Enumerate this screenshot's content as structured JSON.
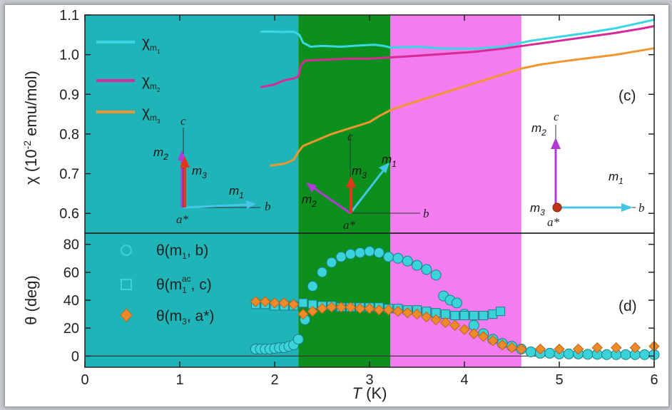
{
  "chart_data": [
    {
      "panel": "c",
      "type": "line",
      "ylabel_parts": [
        "χ (10",
        "-2",
        " emu/mol)"
      ],
      "ylim": [
        0.55,
        1.1
      ],
      "yticks": [
        "0.6",
        "0.7",
        "0.8",
        "0.9",
        "1.0",
        "1.1"
      ],
      "regions": [
        {
          "from": 0,
          "to": 2.25,
          "color": "#1fb5b8"
        },
        {
          "from": 2.25,
          "to": 3.22,
          "color": "#0c8f1c"
        },
        {
          "from": 3.22,
          "to": 4.6,
          "color": "#f27cf0"
        }
      ],
      "series": [
        {
          "name": "χm1",
          "color": "#39d6e6",
          "x": [
            1.85,
            2.0,
            2.1,
            2.2,
            2.26,
            2.3,
            2.38,
            2.5,
            2.7,
            2.9,
            3.05,
            3.15,
            3.22,
            3.5,
            3.8,
            4.1,
            4.4,
            4.7,
            5.0,
            5.3,
            5.6,
            5.85,
            6.0
          ],
          "y": [
            1.058,
            1.058,
            1.057,
            1.058,
            1.05,
            1.03,
            1.02,
            1.022,
            1.02,
            1.023,
            1.025,
            1.022,
            1.018,
            1.02,
            1.015,
            1.015,
            1.02,
            1.035,
            1.045,
            1.055,
            1.067,
            1.08,
            1.088
          ]
        },
        {
          "name": "χm2",
          "color": "#d82a96",
          "x": [
            1.85,
            2.0,
            2.1,
            2.2,
            2.25,
            2.28,
            2.32,
            2.5,
            2.8,
            3.0,
            3.22,
            3.5,
            3.8,
            4.1,
            4.4,
            4.7,
            5.0,
            5.3,
            5.6,
            5.85,
            6.0
          ],
          "y": [
            0.918,
            0.925,
            0.935,
            0.94,
            0.945,
            0.975,
            0.985,
            0.987,
            0.99,
            0.99,
            0.993,
            0.997,
            1.002,
            1.007,
            1.015,
            1.025,
            1.035,
            1.045,
            1.055,
            1.065,
            1.072
          ]
        },
        {
          "name": "χm3",
          "color": "#f0962c",
          "x": [
            1.95,
            2.1,
            2.2,
            2.25,
            2.3,
            2.45,
            2.6,
            2.8,
            3.0,
            3.1,
            3.22,
            3.4,
            3.6,
            3.8,
            4.0,
            4.2,
            4.4,
            4.6,
            4.8,
            5.0,
            5.2,
            5.4,
            5.6,
            5.8,
            6.0
          ],
          "y": [
            0.72,
            0.725,
            0.735,
            0.755,
            0.77,
            0.785,
            0.8,
            0.815,
            0.83,
            0.845,
            0.86,
            0.875,
            0.89,
            0.905,
            0.92,
            0.935,
            0.95,
            0.965,
            0.975,
            0.982,
            0.988,
            0.994,
            1.0,
            1.008,
            1.016
          ]
        }
      ],
      "annotations": {
        "panel_label": "(c)",
        "region1": {
          "c": "c",
          "m2": "m",
          "m2_sub": "2",
          "m3": "m",
          "m3_sub": "3",
          "m1": "m",
          "m1_sub": "1",
          "b": "b",
          "a": "a*"
        },
        "region2": {
          "c": "c",
          "m3": "m",
          "m3_sub": "3",
          "m1": "m",
          "m1_sub": "1",
          "m2": "m",
          "m2_sub": "2",
          "b": "b",
          "a": "a*"
        },
        "region4": {
          "m2": "m",
          "m2_sub": "2",
          "c": "c",
          "m1": "m",
          "m1_sub": "1",
          "m3": "m",
          "m3_sub": "3",
          "b": "b",
          "a": "a*"
        }
      }
    },
    {
      "panel": "d",
      "type": "scatter",
      "ylabel": "θ (deg)",
      "ylim": [
        -8,
        88
      ],
      "yticks": [
        "0",
        "20",
        "40",
        "60",
        "80"
      ],
      "series": [
        {
          "name": "θ(m1, b)",
          "marker": "circle",
          "color": "#3ad3da",
          "x": [
            1.8,
            1.85,
            1.9,
            1.95,
            2.0,
            2.05,
            2.1,
            2.15,
            2.2,
            2.25,
            2.32,
            2.4,
            2.5,
            2.6,
            2.7,
            2.8,
            2.9,
            3.0,
            3.1,
            3.2,
            3.3,
            3.4,
            3.5,
            3.6,
            3.7,
            3.78,
            3.85,
            3.92,
            4.0,
            4.1,
            4.2,
            4.3,
            4.4,
            4.5,
            4.6,
            4.7,
            4.8,
            4.9,
            5.0,
            5.1,
            5.2,
            5.3,
            5.4,
            5.5,
            5.6,
            5.7,
            5.8,
            5.9,
            6.0
          ],
          "y": [
            5,
            5,
            5,
            5,
            5.5,
            6,
            6,
            7,
            8,
            12,
            26,
            50,
            60,
            67,
            71,
            73,
            74,
            75,
            74,
            71,
            70,
            68,
            65,
            62,
            58,
            43,
            40,
            38,
            30,
            22,
            16,
            12,
            9,
            7,
            5,
            3,
            2,
            2,
            1.5,
            1.5,
            1.5,
            1.2,
            1.2,
            1,
            1,
            1,
            1,
            1,
            1
          ]
        },
        {
          "name": "θ(m1ac, c)",
          "marker": "square",
          "color": "#3ad3da",
          "x": [
            1.8,
            1.9,
            2.0,
            2.1,
            2.2,
            2.3,
            2.4,
            2.5,
            2.6,
            2.7,
            2.8,
            2.9,
            3.0,
            3.1,
            3.2,
            3.3,
            3.4,
            3.5,
            3.6,
            3.7,
            3.8,
            3.9,
            4.0,
            4.1,
            4.2,
            4.3,
            4.38
          ],
          "y": [
            37,
            37,
            36,
            36,
            36,
            38,
            37,
            36,
            36,
            35,
            35,
            35,
            35,
            35,
            34,
            34,
            33,
            33,
            32,
            31,
            30,
            29,
            29,
            29,
            29,
            30,
            32
          ]
        },
        {
          "name": "θ(m3, a*)",
          "marker": "diamond",
          "color": "#ef8a2a",
          "x": [
            1.8,
            1.9,
            2.0,
            2.1,
            2.2,
            2.3,
            2.4,
            2.5,
            2.6,
            2.7,
            2.8,
            2.9,
            3.0,
            3.1,
            3.2,
            3.3,
            3.4,
            3.5,
            3.6,
            3.7,
            3.8,
            3.9,
            4.0,
            4.1,
            4.2,
            4.3,
            4.4,
            4.5,
            4.6,
            4.8,
            5.0,
            5.2,
            5.4,
            5.6,
            5.8,
            6.0
          ],
          "y": [
            39,
            39,
            38,
            38,
            37,
            30,
            32,
            34,
            35,
            35,
            35,
            34,
            34,
            33,
            33,
            32,
            31,
            30,
            28,
            26,
            24,
            22,
            19,
            16,
            14,
            11,
            8,
            6,
            5,
            5,
            5,
            5,
            6,
            6,
            6,
            7
          ]
        }
      ],
      "legend_text": [
        {
          "base": "θ(m",
          "sub": "1",
          "sup": "",
          "rest": ", b)"
        },
        {
          "base": "θ(m",
          "sub": "1",
          "sup": "ac",
          "rest": ", c)"
        },
        {
          "base": "θ(m",
          "sub": "3",
          "sup": "",
          "rest": ", a*)"
        }
      ],
      "panel_label": "(d)"
    }
  ],
  "xaxis": {
    "label_italic": "T",
    "label_rest": " (K)",
    "xlim": [
      0,
      6
    ],
    "ticks": [
      "0",
      "1",
      "2",
      "3",
      "4",
      "5",
      "6"
    ]
  },
  "legend_c": [
    {
      "base": "χ",
      "sub": "m",
      "subsub": "1"
    },
    {
      "base": "χ",
      "sub": "m",
      "subsub": "2"
    },
    {
      "base": "χ",
      "sub": "m",
      "subsub": "3"
    }
  ],
  "colors": {
    "cyan": "#39d6e6",
    "magenta": "#d82a96",
    "orange": "#f0962c",
    "vec_m1": "#43c7e6",
    "vec_m2": "#b23bd6",
    "vec_m3": "#e2381a"
  }
}
